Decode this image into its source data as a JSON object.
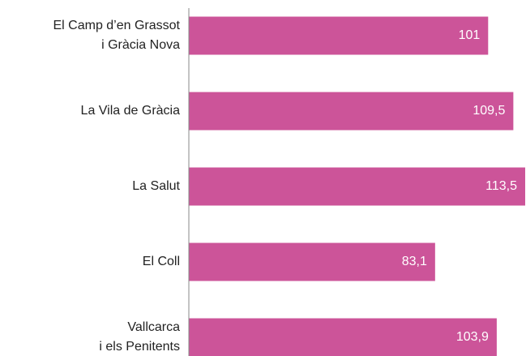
{
  "chart_data": {
    "type": "barh",
    "categories": [
      [
        "El Camp d’en Grassot",
        "i Gràcia Nova"
      ],
      [
        "La Vila de Gràcia"
      ],
      [
        "La Salut"
      ],
      [
        "El Coll"
      ],
      [
        "Vallcarca",
        "i els Penitents"
      ]
    ],
    "values": [
      101,
      109.5,
      113.5,
      83.1,
      103.9
    ],
    "value_labels": [
      "101",
      "109,5",
      "113,5",
      "83,1",
      "103,9"
    ],
    "color": "#cc5499"
  }
}
